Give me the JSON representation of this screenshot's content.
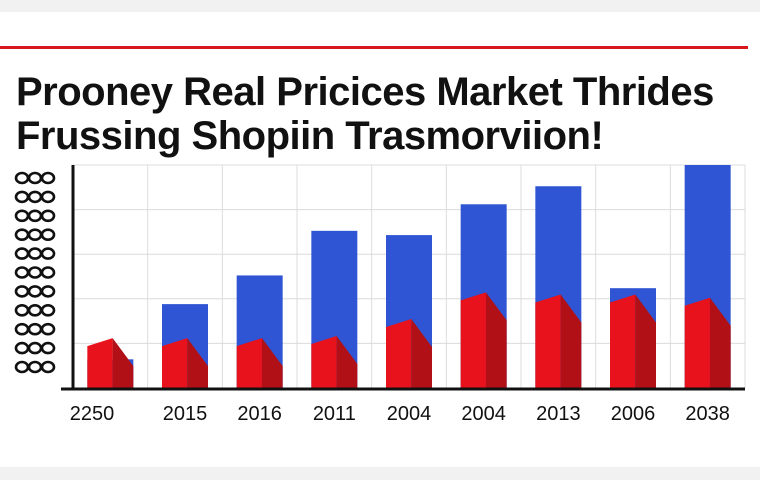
{
  "colors": {
    "accent": "#d8171b",
    "blue": "#2f55d4",
    "red": "#e8121c",
    "red_dark": "#b01016",
    "grid": "#dcdcdc",
    "axis": "#111111"
  },
  "title_lines": [
    "Prooney Real Pricices Market Thrides",
    "Frussing Shopiin Trasmorviion!"
  ],
  "chart_data": {
    "type": "bar",
    "categories": [
      "2250",
      "2015",
      "2016",
      "2011",
      "2004",
      "2004",
      "2013",
      "2006",
      "2038"
    ],
    "series": [
      {
        "color": "blue",
        "values": [
          27,
          79,
          106,
          148,
          144,
          173,
          190,
          94,
          210
        ]
      },
      {
        "color": "red",
        "values": [
          47,
          47,
          47,
          49,
          65,
          90,
          88,
          88,
          85
        ]
      }
    ],
    "ylim": [
      0,
      210
    ],
    "yticks_label": "illegible",
    "grid": true,
    "legend": "none"
  }
}
